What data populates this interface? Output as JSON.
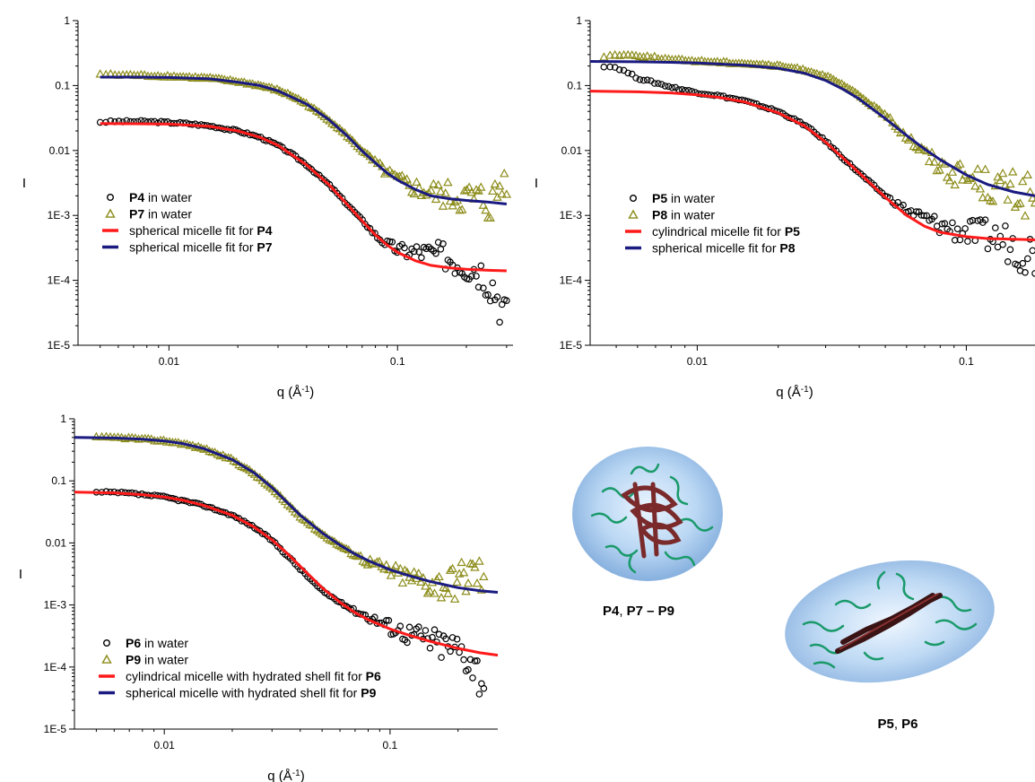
{
  "chart_data": [
    {
      "type": "scatter",
      "xlabel": "q (Å",
      "xlabel_sup": "-1",
      "xlabel_end": ")",
      "ylabel": "I",
      "xscale": "log",
      "yscale": "log",
      "xlim": [
        0.004,
        0.32
      ],
      "ylim": [
        1e-05,
        1
      ],
      "x_ticks": [
        {
          "v": 0.01,
          "label": "0.01"
        },
        {
          "v": 0.1,
          "label": "0.1"
        }
      ],
      "y_ticks": [
        {
          "v": 1,
          "label": "1"
        },
        {
          "v": 0.1,
          "label": "0.1"
        },
        {
          "v": 0.01,
          "label": "0.01"
        },
        {
          "v": 0.001,
          "label": "1E-3"
        },
        {
          "v": 0.0001,
          "label": "1E-4"
        },
        {
          "v": 1e-05,
          "label": "1E-5"
        }
      ],
      "legend_position": "lower-left",
      "series": [
        {
          "bold": "P4",
          "rest": " in water",
          "kind": "circles",
          "color": "#000000",
          "x": [
            0.005,
            0.006,
            0.007,
            0.008,
            0.01,
            0.012,
            0.015,
            0.02,
            0.025,
            0.03,
            0.035,
            0.04,
            0.05,
            0.06,
            0.07,
            0.08,
            0.09,
            0.1,
            0.11,
            0.12,
            0.14,
            0.16,
            0.18,
            0.2,
            0.22,
            0.24,
            0.26,
            0.28,
            0.3
          ],
          "y": [
            0.0275,
            0.028,
            0.028,
            0.028,
            0.027,
            0.026,
            0.024,
            0.02,
            0.016,
            0.012,
            0.0085,
            0.006,
            0.003,
            0.0015,
            0.00085,
            0.0005,
            0.00036,
            0.0003,
            0.00028,
            0.00028,
            0.00026,
            0.00024,
            0.0002,
            0.00018,
            0.00016,
            0.00013,
            9e-05,
            5e-05,
            2.5e-05
          ]
        },
        {
          "bold": "P7",
          "rest": " in water",
          "kind": "triangles",
          "color": "#8c8c1a",
          "x": [
            0.005,
            0.006,
            0.007,
            0.008,
            0.01,
            0.012,
            0.015,
            0.02,
            0.025,
            0.03,
            0.035,
            0.04,
            0.05,
            0.06,
            0.07,
            0.08,
            0.09,
            0.1,
            0.11,
            0.12,
            0.14,
            0.16,
            0.18,
            0.2,
            0.22,
            0.24,
            0.26,
            0.28,
            0.3
          ],
          "y": [
            0.15,
            0.145,
            0.145,
            0.142,
            0.14,
            0.135,
            0.13,
            0.115,
            0.1,
            0.085,
            0.068,
            0.052,
            0.03,
            0.017,
            0.01,
            0.0065,
            0.0045,
            0.0035,
            0.003,
            0.0026,
            0.0022,
            0.002,
            0.0019,
            0.0018,
            0.0017,
            0.0016,
            0.0015,
            0.0025,
            0.004
          ]
        },
        {
          "bold": "",
          "rest": "spherical micelle fit for ",
          "bold2": "P4",
          "kind": "line",
          "color": "#ff1a1a",
          "x": [
            0.005,
            0.007,
            0.01,
            0.015,
            0.02,
            0.025,
            0.03,
            0.04,
            0.05,
            0.06,
            0.07,
            0.08,
            0.09,
            0.1,
            0.12,
            0.14,
            0.17,
            0.2,
            0.25,
            0.3
          ],
          "y": [
            0.026,
            0.0258,
            0.0255,
            0.0235,
            0.02,
            0.016,
            0.012,
            0.006,
            0.003,
            0.0015,
            0.00082,
            0.0005,
            0.00035,
            0.00027,
            0.0002,
            0.00017,
            0.000155,
            0.000148,
            0.000143,
            0.00014
          ]
        },
        {
          "bold": "",
          "rest": "spherical micelle fit for ",
          "bold2": "P7",
          "kind": "line",
          "color": "#1a1a80",
          "x": [
            0.005,
            0.007,
            0.01,
            0.015,
            0.02,
            0.025,
            0.03,
            0.04,
            0.05,
            0.06,
            0.07,
            0.08,
            0.09,
            0.1,
            0.12,
            0.14,
            0.17,
            0.2,
            0.25,
            0.3
          ],
          "y": [
            0.135,
            0.135,
            0.133,
            0.127,
            0.113,
            0.1,
            0.083,
            0.052,
            0.03,
            0.017,
            0.0098,
            0.0064,
            0.0045,
            0.0035,
            0.0025,
            0.002,
            0.0018,
            0.0017,
            0.0016,
            0.0015
          ]
        }
      ]
    },
    {
      "type": "scatter",
      "xlabel": "q (Å",
      "xlabel_sup": "-1",
      "xlabel_end": ")",
      "ylabel": "I",
      "xscale": "log",
      "yscale": "log",
      "xlim": [
        0.004,
        0.18
      ],
      "ylim": [
        1e-05,
        1
      ],
      "x_ticks": [
        {
          "v": 0.01,
          "label": "0.01"
        },
        {
          "v": 0.1,
          "label": "0.1"
        }
      ],
      "y_ticks": [
        {
          "v": 1,
          "label": "1"
        },
        {
          "v": 0.1,
          "label": "0.1"
        },
        {
          "v": 0.01,
          "label": "0.01"
        },
        {
          "v": 0.001,
          "label": "1E-3"
        },
        {
          "v": 0.0001,
          "label": "1E-4"
        },
        {
          "v": 1e-05,
          "label": "1E-5"
        }
      ],
      "legend_position": "lower-left",
      "series": [
        {
          "bold": "P5",
          "rest": " in water",
          "kind": "circles",
          "color": "#000000",
          "x": [
            0.0045,
            0.005,
            0.0055,
            0.006,
            0.007,
            0.008,
            0.009,
            0.01,
            0.012,
            0.015,
            0.02,
            0.025,
            0.03,
            0.035,
            0.04,
            0.05,
            0.06,
            0.07,
            0.08,
            0.09,
            0.1,
            0.11,
            0.12,
            0.14,
            0.16,
            0.18
          ],
          "y": [
            0.2,
            0.19,
            0.16,
            0.13,
            0.11,
            0.095,
            0.085,
            0.078,
            0.07,
            0.058,
            0.04,
            0.025,
            0.014,
            0.0075,
            0.0045,
            0.002,
            0.0012,
            0.0009,
            0.0007,
            0.0006,
            0.00055,
            0.0005,
            0.00048,
            0.0004,
            0.0003,
            0.00025
          ]
        },
        {
          "bold": "P8",
          "rest": " in water",
          "kind": "triangles",
          "color": "#8c8c1a",
          "x": [
            0.0045,
            0.005,
            0.006,
            0.007,
            0.008,
            0.01,
            0.012,
            0.015,
            0.02,
            0.025,
            0.03,
            0.035,
            0.04,
            0.05,
            0.06,
            0.07,
            0.08,
            0.09,
            0.1,
            0.11,
            0.12,
            0.14,
            0.16,
            0.18
          ],
          "y": [
            0.28,
            0.3,
            0.29,
            0.27,
            0.25,
            0.24,
            0.23,
            0.22,
            0.2,
            0.175,
            0.14,
            0.1,
            0.07,
            0.035,
            0.017,
            0.009,
            0.006,
            0.0045,
            0.004,
            0.0035,
            0.003,
            0.0025,
            0.0022,
            0.002
          ]
        },
        {
          "bold": "",
          "rest": "cylindrical micelle fit for ",
          "bold2": "P5",
          "kind": "line",
          "color": "#ff1a1a",
          "x": [
            0.004,
            0.006,
            0.008,
            0.01,
            0.012,
            0.015,
            0.02,
            0.025,
            0.03,
            0.035,
            0.04,
            0.05,
            0.06,
            0.07,
            0.08,
            0.1,
            0.12,
            0.15,
            0.18
          ],
          "y": [
            0.082,
            0.08,
            0.077,
            0.072,
            0.066,
            0.056,
            0.038,
            0.024,
            0.0135,
            0.0075,
            0.0045,
            0.0019,
            0.001,
            0.00068,
            0.00055,
            0.00047,
            0.00044,
            0.00043,
            0.00042
          ]
        },
        {
          "bold": "",
          "rest": "spherical micelle fit for ",
          "bold2": "P8",
          "kind": "line",
          "color": "#1a1a80",
          "x": [
            0.004,
            0.006,
            0.008,
            0.01,
            0.015,
            0.02,
            0.025,
            0.03,
            0.035,
            0.04,
            0.05,
            0.06,
            0.07,
            0.08,
            0.1,
            0.12,
            0.15,
            0.18
          ],
          "y": [
            0.235,
            0.232,
            0.228,
            0.222,
            0.205,
            0.185,
            0.155,
            0.12,
            0.087,
            0.062,
            0.031,
            0.017,
            0.0105,
            0.0072,
            0.0042,
            0.003,
            0.0023,
            0.002
          ]
        }
      ]
    },
    {
      "type": "scatter",
      "xlabel": "q (Å",
      "xlabel_sup": "-1",
      "xlabel_end": ")",
      "ylabel": "I",
      "xscale": "log",
      "yscale": "log",
      "xlim": [
        0.004,
        0.3
      ],
      "ylim": [
        1e-05,
        1
      ],
      "x_ticks": [
        {
          "v": 0.01,
          "label": "0.01"
        },
        {
          "v": 0.1,
          "label": "0.1"
        }
      ],
      "y_ticks": [
        {
          "v": 1,
          "label": "1"
        },
        {
          "v": 0.1,
          "label": "0.1"
        },
        {
          "v": 0.01,
          "label": "0.01"
        },
        {
          "v": 0.001,
          "label": "1E-3"
        },
        {
          "v": 0.0001,
          "label": "1E-4"
        },
        {
          "v": 1e-05,
          "label": "1E-5"
        }
      ],
      "legend_position": "lower-left",
      "series": [
        {
          "bold": "P6",
          "rest": " in water",
          "kind": "circles",
          "color": "#000000",
          "x": [
            0.005,
            0.006,
            0.007,
            0.008,
            0.01,
            0.012,
            0.015,
            0.02,
            0.025,
            0.03,
            0.035,
            0.04,
            0.05,
            0.06,
            0.07,
            0.08,
            0.1,
            0.12,
            0.14,
            0.16,
            0.18,
            0.2,
            0.22,
            0.24,
            0.26
          ],
          "y": [
            0.065,
            0.065,
            0.063,
            0.06,
            0.055,
            0.048,
            0.04,
            0.028,
            0.018,
            0.011,
            0.0063,
            0.0038,
            0.0017,
            0.0011,
            0.0008,
            0.00065,
            0.00045,
            0.00035,
            0.0003,
            0.00025,
            0.00022,
            0.0002,
            0.00016,
            0.0001,
            6e-05
          ]
        },
        {
          "bold": "P9",
          "rest": " in water",
          "kind": "triangles",
          "color": "#8c8c1a",
          "x": [
            0.005,
            0.006,
            0.007,
            0.008,
            0.01,
            0.012,
            0.015,
            0.02,
            0.025,
            0.03,
            0.035,
            0.04,
            0.05,
            0.06,
            0.07,
            0.08,
            0.1,
            0.12,
            0.14,
            0.16,
            0.18,
            0.2,
            0.22,
            0.24,
            0.26
          ],
          "y": [
            0.5,
            0.5,
            0.49,
            0.47,
            0.44,
            0.4,
            0.33,
            0.22,
            0.13,
            0.075,
            0.043,
            0.027,
            0.014,
            0.009,
            0.0065,
            0.005,
            0.0035,
            0.0028,
            0.0024,
            0.0022,
            0.0022,
            0.0025,
            0.003,
            0.0035,
            0.0025
          ]
        },
        {
          "bold": "",
          "rest": "cylindrical micelle with hydrated shell fit for ",
          "bold2": "P6",
          "kind": "line",
          "color": "#ff1a1a",
          "x": [
            0.004,
            0.006,
            0.008,
            0.01,
            0.012,
            0.015,
            0.02,
            0.025,
            0.03,
            0.035,
            0.04,
            0.05,
            0.06,
            0.07,
            0.08,
            0.1,
            0.12,
            0.15,
            0.2,
            0.25,
            0.3
          ],
          "y": [
            0.066,
            0.064,
            0.06,
            0.055,
            0.049,
            0.04,
            0.028,
            0.018,
            0.0112,
            0.0068,
            0.0042,
            0.0019,
            0.0011,
            0.00075,
            0.00058,
            0.00041,
            0.00033,
            0.00026,
            0.0002,
            0.00017,
            0.000155
          ]
        },
        {
          "bold": "",
          "rest": "spherical micelle with hydrated shell fit for ",
          "bold2": "P9",
          "kind": "line",
          "color": "#1a1a80",
          "x": [
            0.004,
            0.006,
            0.008,
            0.01,
            0.012,
            0.015,
            0.02,
            0.025,
            0.03,
            0.035,
            0.04,
            0.05,
            0.06,
            0.07,
            0.08,
            0.1,
            0.12,
            0.15,
            0.2,
            0.25,
            0.3
          ],
          "y": [
            0.5,
            0.49,
            0.47,
            0.44,
            0.4,
            0.33,
            0.22,
            0.135,
            0.078,
            0.045,
            0.028,
            0.0145,
            0.0092,
            0.0066,
            0.0052,
            0.0037,
            0.003,
            0.0024,
            0.0019,
            0.0017,
            0.0016
          ]
        }
      ]
    }
  ],
  "illustrations": {
    "sphere_label_bold1": "P4",
    "sphere_label_sep": ", ",
    "sphere_label_bold2": "P7 – P9",
    "ellipsoid_label_bold1": "P5",
    "ellipsoid_label_sep": ", ",
    "ellipsoid_label_bold2": "P6"
  }
}
